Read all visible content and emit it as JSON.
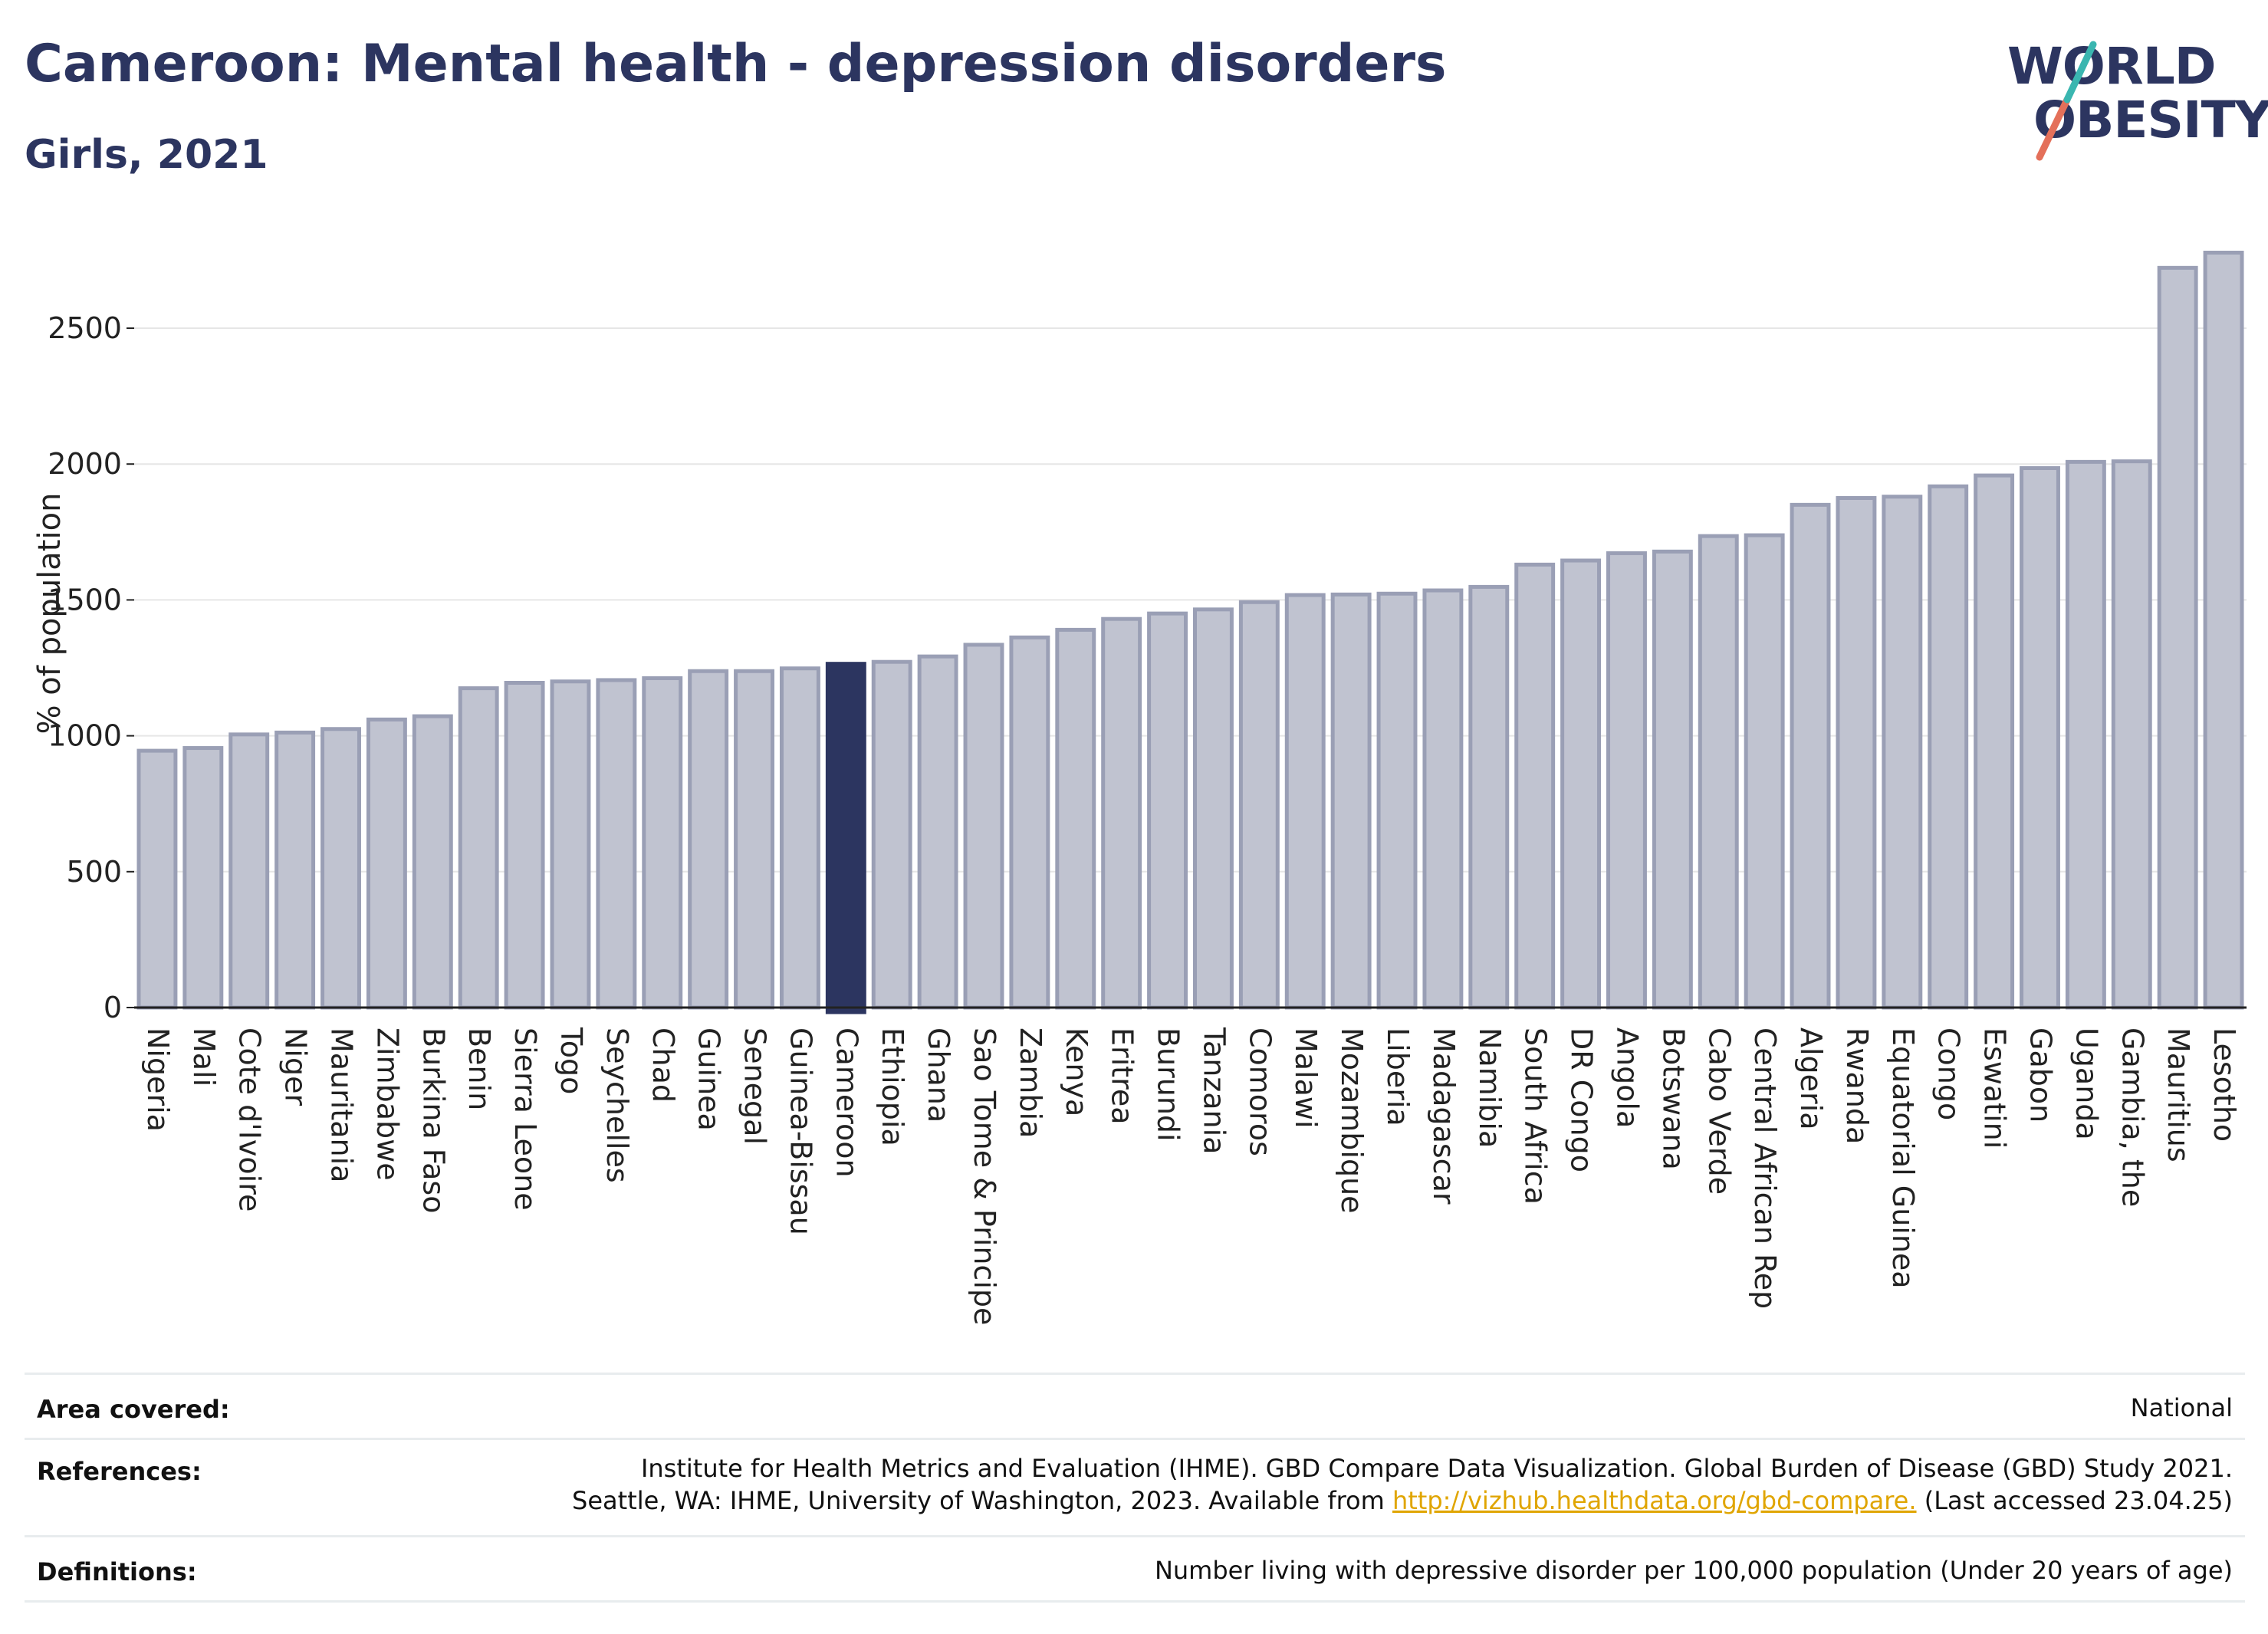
{
  "header": {
    "title": "Cameroon: Mental health - depression disorders",
    "subtitle": "Girls, 2021"
  },
  "logo": {
    "line1": "WORLD",
    "line2": "OBESITY",
    "color_primary": "#2c3560",
    "color_slash_top": "#3ab6b0",
    "color_slash_bottom": "#e4705a"
  },
  "chart_data": {
    "type": "bar",
    "ylabel": "% of population",
    "ylim": [
      0,
      2800
    ],
    "yticks": [
      0,
      500,
      1000,
      1500,
      2000,
      2500
    ],
    "grid": true,
    "highlight": "Cameroon",
    "colors": {
      "bar": "#c0c3d0",
      "bar_edge": "#9a9fb5",
      "highlight": "#2c3560"
    },
    "categories": [
      "Nigeria",
      "Mali",
      "Cote d'Ivoire",
      "Niger",
      "Mauritania",
      "Zimbabwe",
      "Burkina Faso",
      "Benin",
      "Sierra Leone",
      "Togo",
      "Seychelles",
      "Chad",
      "Guinea",
      "Senegal",
      "Guinea-Bissau",
      "Cameroon",
      "Ethiopia",
      "Ghana",
      "Sao Tome & Principe",
      "Zambia",
      "Kenya",
      "Eritrea",
      "Burundi",
      "Tanzania",
      "Comoros",
      "Malawi",
      "Mozambique",
      "Liberia",
      "Madagascar",
      "Namibia",
      "South Africa",
      "DR Congo",
      "Angola",
      "Botswana",
      "Cabo Verde",
      "Central African Rep",
      "Algeria",
      "Rwanda",
      "Equatorial Guinea",
      "Congo",
      "Eswatini",
      "Gabon",
      "Uganda",
      "Gambia, the",
      "Mauritius",
      "Lesotho"
    ],
    "values": [
      945,
      955,
      1005,
      1012,
      1025,
      1060,
      1072,
      1175,
      1195,
      1200,
      1205,
      1212,
      1238,
      1238,
      1248,
      1265,
      1272,
      1292,
      1335,
      1362,
      1390,
      1430,
      1450,
      1465,
      1492,
      1518,
      1520,
      1523,
      1535,
      1548,
      1630,
      1645,
      1672,
      1678,
      1735,
      1738,
      1850,
      1875,
      1880,
      1918,
      1958,
      1985,
      2008,
      2010,
      2722,
      2778
    ]
  },
  "footer": {
    "area_label": "Area covered:",
    "area_value": "National",
    "ref_label": "References:",
    "ref_line1": "Institute for Health Metrics and Evaluation (IHME). GBD Compare Data Visualization. Global Burden of Disease (GBD) Study 2021.",
    "ref_line2_pre": "Seattle, WA: IHME, University of Washington, 2023. Available from ",
    "ref_link": "http://vizhub.healthdata.org/gbd-compare.",
    "ref_line2_post": " (Last accessed 23.04.25)",
    "def_label": "Definitions:",
    "def_value": "Number living with depressive disorder per 100,000 population (Under 20 years of age)"
  }
}
